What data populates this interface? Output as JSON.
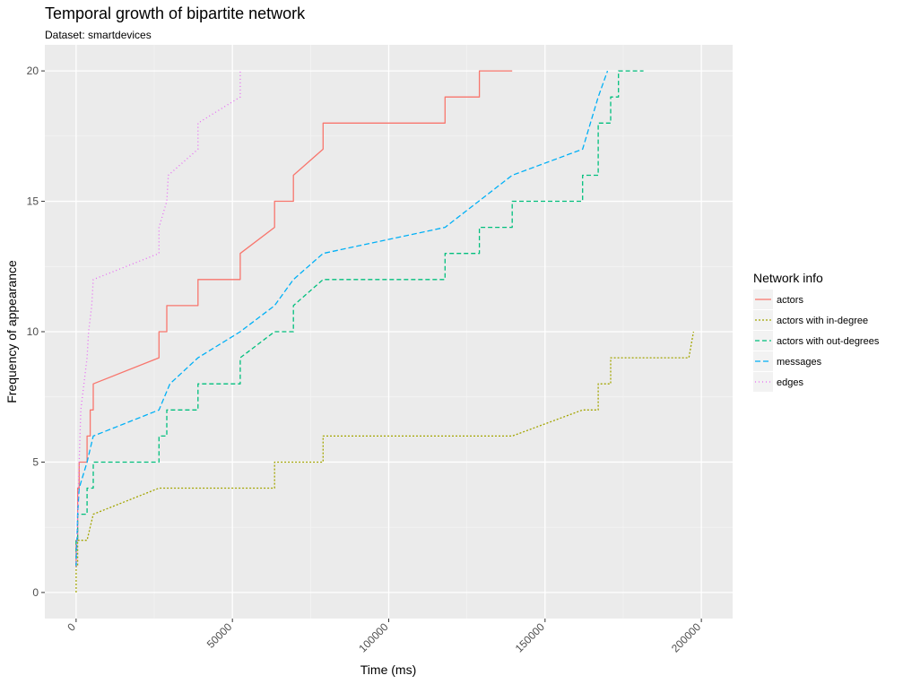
{
  "chart_data": {
    "type": "line",
    "title": "Temporal growth of bipartite network",
    "subtitle": "Dataset: smartdevices",
    "xlabel": "Time (ms)",
    "ylabel": "Frequency of appearance",
    "xlim": [
      -10000,
      210000
    ],
    "ylim": [
      -1,
      21
    ],
    "x_ticks": [
      0,
      50000,
      100000,
      150000,
      200000
    ],
    "x_tick_labels": [
      "0",
      "50000",
      "100000",
      "150000",
      "200000"
    ],
    "y_ticks": [
      0,
      5,
      10,
      15,
      20
    ],
    "y_tick_labels": [
      "0",
      "5",
      "10",
      "15",
      "20"
    ],
    "grid": true,
    "legend": {
      "title": "Network info",
      "position": "right"
    },
    "series": [
      {
        "name": "actors",
        "color": "#F8766D",
        "dash": "solid",
        "points": [
          [
            0,
            1
          ],
          [
            0,
            2
          ],
          [
            500,
            2
          ],
          [
            500,
            4
          ],
          [
            1000,
            4
          ],
          [
            1000,
            5
          ],
          [
            3500,
            5
          ],
          [
            3500,
            6
          ],
          [
            4500,
            6
          ],
          [
            4500,
            7
          ],
          [
            5500,
            7
          ],
          [
            5500,
            8
          ],
          [
            26500,
            9
          ],
          [
            26500,
            10
          ],
          [
            29000,
            10
          ],
          [
            29000,
            11
          ],
          [
            39000,
            11
          ],
          [
            39000,
            12
          ],
          [
            52500,
            12
          ],
          [
            52500,
            13
          ],
          [
            63500,
            14
          ],
          [
            63500,
            15
          ],
          [
            69500,
            15
          ],
          [
            69500,
            16
          ],
          [
            79000,
            17
          ],
          [
            79000,
            18
          ],
          [
            118000,
            18
          ],
          [
            118000,
            19
          ],
          [
            129000,
            19
          ],
          [
            129000,
            20
          ],
          [
            139500,
            20
          ]
        ]
      },
      {
        "name": "actors with in-degree",
        "color": "#A3A500",
        "dash": "2,2",
        "points": [
          [
            0,
            0
          ],
          [
            0,
            1
          ],
          [
            500,
            1
          ],
          [
            500,
            2
          ],
          [
            3500,
            2
          ],
          [
            5500,
            3
          ],
          [
            26500,
            4
          ],
          [
            63500,
            4
          ],
          [
            63500,
            5
          ],
          [
            79000,
            5
          ],
          [
            79000,
            6
          ],
          [
            139500,
            6
          ],
          [
            162000,
            7
          ],
          [
            167000,
            7
          ],
          [
            167000,
            8
          ],
          [
            171000,
            8
          ],
          [
            171000,
            9
          ],
          [
            174000,
            9
          ],
          [
            196000,
            9
          ],
          [
            197500,
            10
          ]
        ]
      },
      {
        "name": "actors with out-degrees",
        "color": "#00BF7D",
        "dash": "5,3",
        "points": [
          [
            0,
            1
          ],
          [
            0,
            2
          ],
          [
            500,
            2
          ],
          [
            500,
            3
          ],
          [
            3500,
            3
          ],
          [
            3500,
            4
          ],
          [
            5500,
            4
          ],
          [
            5500,
            5
          ],
          [
            26500,
            5
          ],
          [
            26500,
            6
          ],
          [
            29000,
            6
          ],
          [
            29000,
            7
          ],
          [
            39000,
            7
          ],
          [
            39000,
            8
          ],
          [
            52500,
            8
          ],
          [
            52500,
            9
          ],
          [
            63500,
            10
          ],
          [
            69500,
            10
          ],
          [
            69500,
            11
          ],
          [
            79000,
            12
          ],
          [
            118000,
            12
          ],
          [
            118000,
            13
          ],
          [
            129000,
            13
          ],
          [
            129000,
            14
          ],
          [
            139500,
            14
          ],
          [
            139500,
            15
          ],
          [
            162000,
            15
          ],
          [
            162000,
            16
          ],
          [
            167000,
            16
          ],
          [
            167000,
            17
          ],
          [
            167000,
            18
          ],
          [
            171000,
            18
          ],
          [
            171000,
            19
          ],
          [
            173500,
            19
          ],
          [
            173500,
            20
          ],
          [
            181500,
            20
          ]
        ]
      },
      {
        "name": "messages",
        "color": "#00B0F6",
        "dash": "6,3",
        "points": [
          [
            0,
            1
          ],
          [
            500,
            3
          ],
          [
            1000,
            4
          ],
          [
            3500,
            5
          ],
          [
            5500,
            6
          ],
          [
            26500,
            7
          ],
          [
            30000,
            8
          ],
          [
            39000,
            9
          ],
          [
            52500,
            10
          ],
          [
            63500,
            11
          ],
          [
            69500,
            12
          ],
          [
            79000,
            13
          ],
          [
            118000,
            14
          ],
          [
            139500,
            16
          ],
          [
            162000,
            17
          ],
          [
            167000,
            19
          ],
          [
            170000,
            20
          ]
        ]
      },
      {
        "name": "edges",
        "color": "#E76BF3",
        "dash": "1,3",
        "points": [
          [
            0,
            1
          ],
          [
            500,
            3
          ],
          [
            1000,
            5
          ],
          [
            1500,
            7
          ],
          [
            2500,
            8
          ],
          [
            3500,
            9
          ],
          [
            4000,
            10
          ],
          [
            5000,
            11
          ],
          [
            5500,
            12
          ],
          [
            26500,
            13
          ],
          [
            26500,
            14
          ],
          [
            29000,
            15
          ],
          [
            29500,
            16
          ],
          [
            39000,
            17
          ],
          [
            39000,
            18
          ],
          [
            52500,
            19
          ],
          [
            52500,
            20
          ]
        ]
      }
    ]
  }
}
